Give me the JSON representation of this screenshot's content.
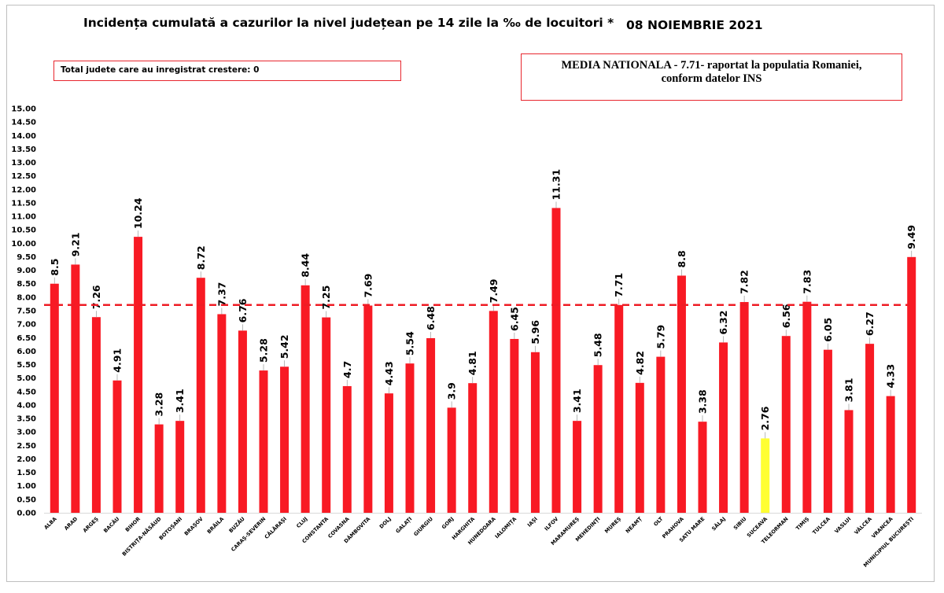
{
  "title": "Incidența cumulată a cazurilor la nivel județean pe 14 zile la ‰ de locuitori *",
  "date": "08 NOIEMBRIE 2021",
  "total_box": "Total judete care au inregistrat crestere: 0",
  "media_box": {
    "line1": "MEDIA NATIONALA - 7.71-  raportat la populatia Romaniei,",
    "line2": "conform datelor INS"
  },
  "colors": {
    "bar": "#f81a24",
    "highlight_bar": "#ffff33",
    "average_line": "#ee1c25"
  },
  "chart_data": {
    "type": "bar",
    "categories": [
      "ALBA",
      "ARAD",
      "ARGEȘ",
      "BACĂU",
      "BIHOR",
      "BISTRIȚA-NĂSĂUD",
      "BOTOȘANI",
      "BRAȘOV",
      "BRĂILA",
      "BUZĂU",
      "CARAȘ-SEVERIN",
      "CĂLĂRAȘI",
      "CLUJ",
      "CONSTANTA",
      "COVASNA",
      "DÂMBOVITA",
      "DOLJ",
      "GALAȚI",
      "GIURGIU",
      "GORJ",
      "HARGHITA",
      "HUNEDOARA",
      "IALOMIȚA",
      "IAȘI",
      "ILFOV",
      "MARAMUREȘ",
      "MEHEDINȚI",
      "MUREȘ",
      "NEAMȚ",
      "OLT",
      "PRAHOVA",
      "SATU MARE",
      "SĂLAJ",
      "SIBIU",
      "SUCEAVA",
      "TELEORMAN",
      "TIMIȘ",
      "TULCEA",
      "VASLUI",
      "VÂLCEA",
      "VRANCEA",
      "MUNICIPIUL BUCUREȘTI"
    ],
    "values": [
      8.5,
      9.21,
      7.26,
      4.91,
      10.24,
      3.28,
      3.41,
      8.72,
      7.37,
      6.76,
      5.28,
      5.42,
      8.44,
      7.25,
      4.7,
      7.69,
      4.43,
      5.54,
      6.48,
      3.9,
      4.81,
      7.49,
      6.45,
      5.96,
      11.31,
      3.41,
      5.48,
      7.71,
      4.82,
      5.79,
      8.8,
      3.38,
      6.32,
      7.82,
      2.76,
      6.56,
      7.83,
      6.05,
      3.81,
      6.27,
      4.33,
      9.49
    ],
    "value_labels": [
      "8.5",
      "9.21",
      "7.26",
      "4.91",
      "10.24",
      "3.28",
      "3.41",
      "8.72",
      "7.37",
      "6.76",
      "5.28",
      "5.42",
      "8.44",
      "7.25",
      "4.7",
      "7.69",
      "4.43",
      "5.54",
      "6.48",
      "3.9",
      "4.81",
      "7.49",
      "6.45",
      "5.96",
      "11.31",
      "3.41",
      "5.48",
      "7.71",
      "4.82",
      "5.79",
      "8.8",
      "3.38",
      "6.32",
      "7.82",
      "2.76",
      "6.56",
      "7.83",
      "6.05",
      "3.81",
      "6.27",
      "4.33",
      "9.49"
    ],
    "highlighted_category": "SUCEAVA",
    "reference_line": 7.71,
    "ylim": [
      0,
      15
    ],
    "ytick_step": 0.5,
    "ytick_labels": [
      "0.00",
      "0.50",
      "1.00",
      "1.50",
      "2.00",
      "2.50",
      "3.00",
      "3.50",
      "4.00",
      "4.50",
      "5.00",
      "5.50",
      "6.00",
      "6.50",
      "7.00",
      "7.50",
      "8.00",
      "8.50",
      "9.00",
      "9.50",
      "10.00",
      "10.50",
      "11.00",
      "11.50",
      "12.00",
      "12.50",
      "13.00",
      "13.50",
      "14.00",
      "14.50",
      "15.00"
    ],
    "xlabel": "",
    "ylabel": "",
    "grid": false,
    "legend": "none"
  }
}
